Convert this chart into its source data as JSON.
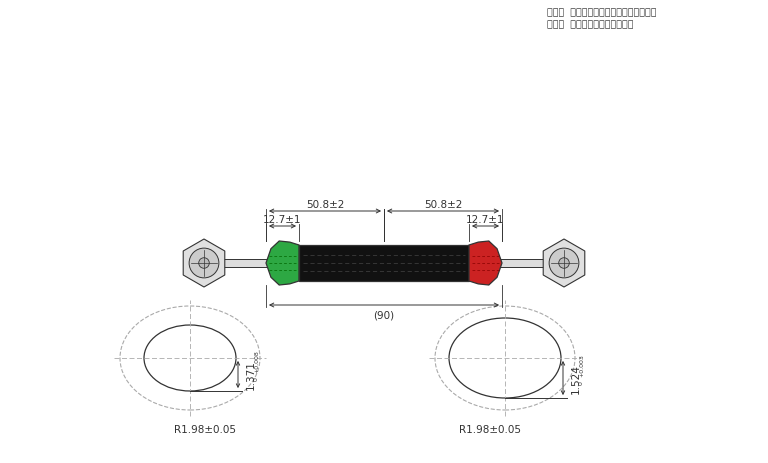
{
  "bg_color": "#ffffff",
  "line_color": "#333333",
  "dashed_color": "#aaaaaa",
  "green_color": "#2da843",
  "red_color": "#cc2222",
  "black_color": "#111111",
  "note1": "注１）  取手部はアルミビンバイスを使用",
  "note2": "注２）  製造番号を刺印すること",
  "dim_50_8": "50.8±2",
  "dim_12_7": "12.7±1",
  "dim_90": "(90)",
  "dim_1371": "1.371",
  "dim_1524": "1.524",
  "dim_r198": "R1.98±0.05",
  "tol_1371_top": "+0.008",
  "tol_1371_bot": "0",
  "tol_1524_top": "+0.003",
  "tol_1524_bot": "0"
}
